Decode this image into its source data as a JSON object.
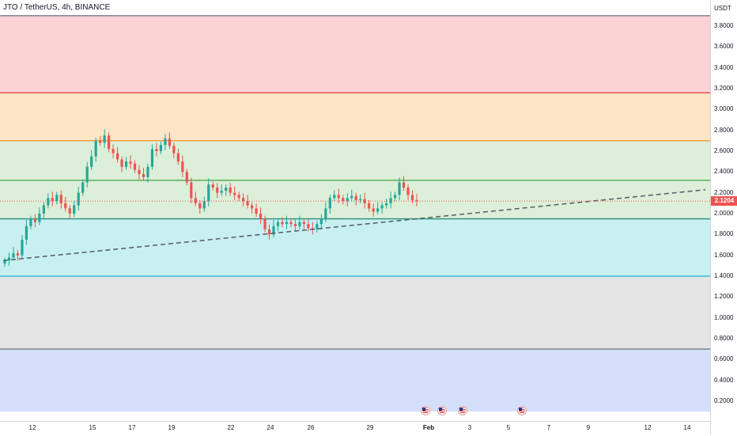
{
  "legend": {
    "title": "JTO / TetherUS, 4h, BINANCE"
  },
  "price_axis": {
    "currency": "USDT",
    "ticks": [
      "3.8000",
      "3.6000",
      "3.4000",
      "3.2000",
      "3.0000",
      "2.8000",
      "2.6000",
      "2.4000",
      "2.2000",
      "2.0000",
      "1.8000",
      "1.6000",
      "1.4000",
      "1.2000",
      "1.0000",
      "0.8000",
      "0.6000",
      "0.4000",
      "0.2000"
    ],
    "last_price": "2.1204"
  },
  "time_axis": {
    "ticks": [
      "12",
      "15",
      "17",
      "19",
      "22",
      "24",
      "26",
      "29",
      "Feb",
      "3",
      "5",
      "7",
      "9",
      "12",
      "14"
    ]
  },
  "events": {
    "count": 4,
    "icon": "us-flag-icon"
  },
  "colors": {
    "bullish": "#26a69a",
    "bearish": "#ef5350",
    "zone_red": "#fbd3d5",
    "zone_orange": "#fde5c5",
    "zone_green": "#dcefd9",
    "zone_teal": "#c8f0f1",
    "zone_gray": "#e5e5e5",
    "zone_blue": "#d4e0fb",
    "line_red": "#e53935",
    "line_orange": "#f29938",
    "line_green": "#43a047",
    "line_teal": "#2b8f7a",
    "line_cyan": "#19b3d4",
    "line_gray": "#787b86"
  },
  "chart_data": {
    "type": "candlestick",
    "symbol": "JTO / TetherUS",
    "interval": "4h",
    "exchange": "BINANCE",
    "y_range": [
      0.1,
      3.9
    ],
    "last_price": 2.1204,
    "fib_levels": [
      {
        "price": 3.9,
        "color": "#787b86"
      },
      {
        "price": 3.16,
        "color": "#e53935"
      },
      {
        "price": 2.7,
        "color": "#f29938"
      },
      {
        "price": 2.32,
        "color": "#43a047"
      },
      {
        "price": 1.95,
        "color": "#2b8f7a"
      },
      {
        "price": 1.4,
        "color": "#19b3d4"
      },
      {
        "price": 0.7,
        "color": "#787b86"
      }
    ],
    "zones": [
      {
        "from": 3.9,
        "to": 3.16,
        "color": "#fbd3d5"
      },
      {
        "from": 3.16,
        "to": 2.7,
        "color": "#fde5c5"
      },
      {
        "from": 2.7,
        "to": 2.32,
        "color": "#dcefd9"
      },
      {
        "from": 2.32,
        "to": 1.95,
        "color": "#dcefd9"
      },
      {
        "from": 1.95,
        "to": 1.4,
        "color": "#c8f0f1"
      },
      {
        "from": 1.4,
        "to": 0.7,
        "color": "#e5e5e5"
      },
      {
        "from": 0.7,
        "to": 0.1,
        "color": "#d4e0fb"
      }
    ],
    "trendline": {
      "from": [
        0,
        1.55
      ],
      "to": [
        1,
        2.23
      ]
    },
    "closes": [
      1.55,
      1.58,
      1.62,
      1.6,
      1.75,
      1.88,
      1.95,
      1.92,
      2.0,
      2.08,
      2.15,
      2.12,
      2.18,
      2.1,
      2.05,
      2.0,
      2.08,
      2.2,
      2.3,
      2.45,
      2.55,
      2.7,
      2.68,
      2.75,
      2.62,
      2.58,
      2.52,
      2.45,
      2.5,
      2.48,
      2.42,
      2.38,
      2.35,
      2.45,
      2.62,
      2.6,
      2.66,
      2.72,
      2.65,
      2.58,
      2.5,
      2.4,
      2.3,
      2.15,
      2.1,
      2.05,
      2.12,
      2.28,
      2.25,
      2.2,
      2.22,
      2.25,
      2.2,
      2.18,
      2.15,
      2.12,
      2.08,
      2.05,
      2.0,
      1.95,
      1.85,
      1.8,
      1.88,
      1.92,
      1.9,
      1.92,
      1.9,
      1.88,
      1.92,
      1.9,
      1.86,
      1.85,
      1.9,
      1.95,
      2.05,
      2.15,
      2.18,
      2.15,
      2.12,
      2.15,
      2.17,
      2.13,
      2.14,
      2.1,
      2.05,
      2.02,
      2.05,
      2.08,
      2.1,
      2.15,
      2.18,
      2.3,
      2.25,
      2.18,
      2.13,
      2.12
    ]
  }
}
